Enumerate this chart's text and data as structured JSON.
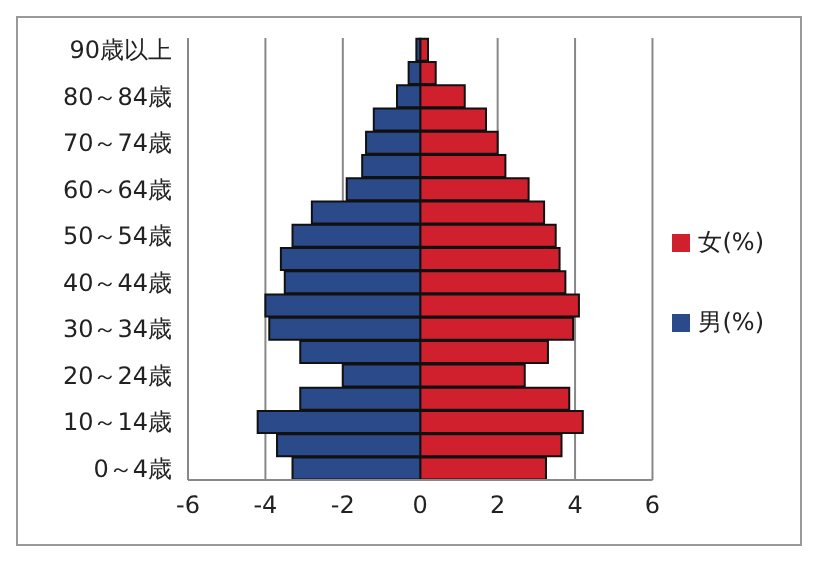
{
  "chart_data": {
    "type": "bar",
    "orientation": "horizontal",
    "stacked": true,
    "categories": [
      "90歳以上",
      null,
      "80～84歳",
      null,
      "70～74歳",
      null,
      "60～64歳",
      null,
      "50～54歳",
      null,
      "40～44歳",
      null,
      "30～34歳",
      null,
      "20～24歳",
      null,
      "10～14歳",
      null,
      "0～4歳"
    ],
    "series": [
      {
        "name": "女(%)",
        "color": "#d0202e",
        "values": [
          0.2,
          0.4,
          1.15,
          1.7,
          2.0,
          2.2,
          2.8,
          3.2,
          3.5,
          3.6,
          3.75,
          4.1,
          3.95,
          3.3,
          2.7,
          3.85,
          4.2,
          3.65,
          3.25
        ]
      },
      {
        "name": "男(%)",
        "color": "#2a4a8a",
        "values": [
          -0.1,
          -0.3,
          -0.6,
          -1.2,
          -1.4,
          -1.5,
          -1.9,
          -2.8,
          -3.3,
          -3.6,
          -3.5,
          -4.0,
          -3.9,
          -3.1,
          -2.0,
          -3.1,
          -4.2,
          -3.7,
          -3.3
        ]
      }
    ],
    "xlim": [
      -6,
      6
    ],
    "xticks": [
      -6,
      -4,
      -2,
      0,
      2,
      4,
      6
    ],
    "grid": "x",
    "legend": "right"
  }
}
